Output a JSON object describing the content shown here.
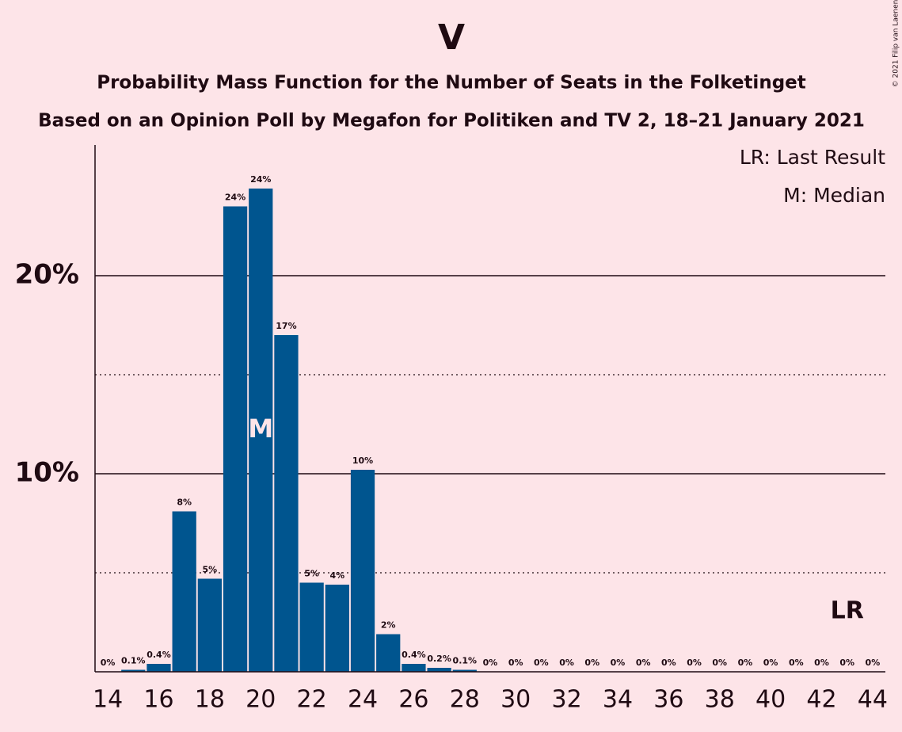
{
  "chart_data": {
    "type": "bar",
    "title": "V",
    "subtitle": "Probability Mass Function for the Number of Seats in the Folketinget",
    "subtitle2": "Based on an Opinion Poll by Megafon for Politiken and TV 2, 18–21 January 2021",
    "copyright": "© 2021 Filip van Laenen",
    "legend_items": [
      "LR: Last Result",
      "M: Median"
    ],
    "x": [
      14,
      15,
      16,
      17,
      18,
      19,
      20,
      21,
      22,
      23,
      24,
      25,
      26,
      27,
      28,
      29,
      30,
      31,
      32,
      33,
      34,
      35,
      36,
      37,
      38,
      39,
      40,
      41,
      42,
      43,
      44
    ],
    "values": [
      0,
      0.1,
      0.4,
      8.1,
      4.7,
      23.5,
      24.4,
      17.0,
      4.5,
      4.4,
      10.2,
      1.9,
      0.4,
      0.2,
      0.1,
      0,
      0,
      0,
      0,
      0,
      0,
      0,
      0,
      0,
      0,
      0,
      0,
      0,
      0,
      0,
      0
    ],
    "value_labels": [
      "0%",
      "0.1%",
      "0.4%",
      "8%",
      "5%",
      "24%",
      "24%",
      "17%",
      "5%",
      "4%",
      "10%",
      "2%",
      "0.4%",
      "0.2%",
      "0.1%",
      "0%",
      "0%",
      "0%",
      "0%",
      "0%",
      "0%",
      "0%",
      "0%",
      "0%",
      "0%",
      "0%",
      "0%",
      "0%",
      "0%",
      "0%",
      "0%"
    ],
    "color": "#00558f",
    "xlim": [
      13.5,
      44.5
    ],
    "xticks": [
      14,
      16,
      18,
      20,
      22,
      24,
      26,
      28,
      30,
      32,
      34,
      36,
      38,
      40,
      42,
      44
    ],
    "ylim": [
      0,
      26.6
    ],
    "yticks": [
      {
        "value": 10,
        "label": "10%"
      },
      {
        "value": 20,
        "label": "20%"
      }
    ],
    "minor_gridlines": [
      5,
      15
    ],
    "median": 20,
    "median_label": "M",
    "last_result": 43,
    "last_result_label": "LR"
  }
}
